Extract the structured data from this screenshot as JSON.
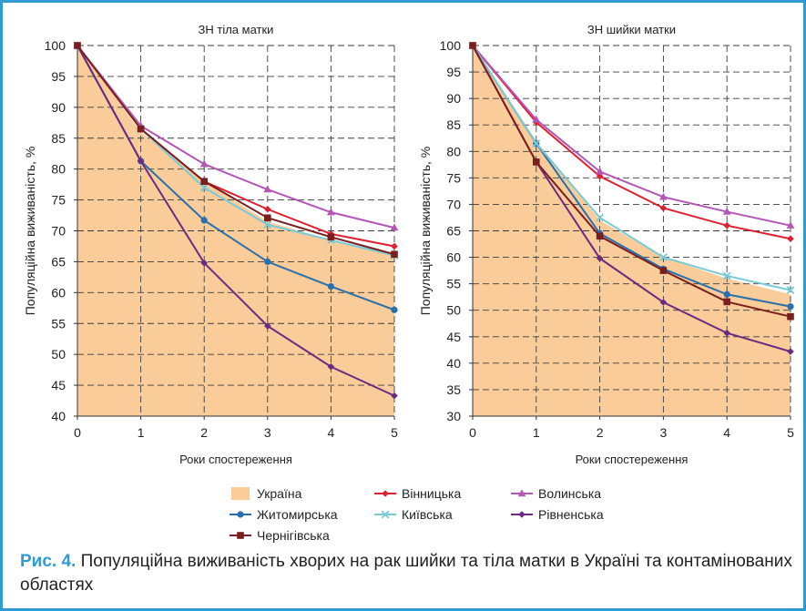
{
  "chart_data": [
    {
      "type": "line",
      "title": "ЗН тіла матки",
      "xlabel": "Роки спостереження",
      "ylabel": "Популяційна виживаність, %",
      "x": [
        0,
        1,
        2,
        3,
        4,
        5
      ],
      "xlim": [
        0,
        5
      ],
      "ylim": [
        40,
        100
      ],
      "yticks": [
        40,
        45,
        50,
        55,
        60,
        65,
        70,
        75,
        80,
        85,
        90,
        95,
        100
      ],
      "grid": true,
      "area": {
        "name": "Україна",
        "color": "#f9cc9a",
        "values": [
          100,
          86,
          78,
          71.5,
          68.5,
          66
        ]
      },
      "series": [
        {
          "name": "Вінницька",
          "color": "#e0202e",
          "marker": "diamond",
          "values": [
            100,
            86.5,
            78,
            73.5,
            69.5,
            67.5
          ]
        },
        {
          "name": "Волинська",
          "color": "#b455b8",
          "marker": "triangle",
          "values": [
            100,
            87,
            80.8,
            76.7,
            73,
            70.5
          ]
        },
        {
          "name": "Житомирська",
          "color": "#2870ad",
          "marker": "circle",
          "values": [
            100,
            81.3,
            71.7,
            65,
            61,
            57.2
          ]
        },
        {
          "name": "Київська",
          "color": "#78cbd6",
          "marker": "x",
          "values": [
            100,
            86.5,
            77,
            71,
            68.5,
            66
          ]
        },
        {
          "name": "Рівненська",
          "color": "#6b2a82",
          "marker": "diamond",
          "values": [
            100,
            81.3,
            64.8,
            54.6,
            48,
            43.3
          ]
        },
        {
          "name": "Чернігівська",
          "color": "#7a1e1e",
          "marker": "square",
          "values": [
            100,
            86.5,
            78,
            72.1,
            69,
            66.2
          ]
        }
      ]
    },
    {
      "type": "line",
      "title": "ЗН шийки матки",
      "xlabel": "Роки спостереження",
      "ylabel": "Популяційна виживаність, %",
      "x": [
        0,
        1,
        2,
        3,
        4,
        5
      ],
      "xlim": [
        0,
        5
      ],
      "ylim": [
        30,
        100
      ],
      "yticks": [
        30,
        35,
        40,
        45,
        50,
        55,
        60,
        65,
        70,
        75,
        80,
        85,
        90,
        95,
        100
      ],
      "grid": true,
      "area": {
        "name": "Україна",
        "color": "#f9cc9a",
        "values": [
          100,
          82,
          67,
          60,
          56,
          53
        ]
      },
      "series": [
        {
          "name": "Вінницька",
          "color": "#e0202e",
          "marker": "diamond",
          "values": [
            100,
            85.5,
            75.3,
            69.3,
            66,
            63.5
          ]
        },
        {
          "name": "Волинська",
          "color": "#b455b8",
          "marker": "triangle",
          "values": [
            100,
            86,
            76.2,
            71.4,
            68.6,
            66
          ]
        },
        {
          "name": "Житомирська",
          "color": "#2870ad",
          "marker": "circle",
          "values": [
            100,
            81.5,
            64.5,
            57.8,
            53,
            50.7
          ]
        },
        {
          "name": "Київська",
          "color": "#78cbd6",
          "marker": "x",
          "values": [
            100,
            81.5,
            67.5,
            60,
            56.5,
            53.8
          ]
        },
        {
          "name": "Рівненська",
          "color": "#6b2a82",
          "marker": "diamond",
          "values": [
            100,
            78,
            59.8,
            51.5,
            45.7,
            42.2
          ]
        },
        {
          "name": "Чернігівська",
          "color": "#7a1e1e",
          "marker": "square",
          "values": [
            100,
            78,
            64,
            57.5,
            51.6,
            48.8
          ]
        }
      ]
    }
  ],
  "legend": [
    "Україна",
    "Вінницька",
    "Волинська",
    "Житомирська",
    "Київська",
    "Рівненська",
    "Чернігівська"
  ],
  "caption": {
    "label": "Рис. 4.",
    "text": " Популяційна виживаність хворих на рак шийки та тіла матки в Україні та контамінованих областях"
  }
}
